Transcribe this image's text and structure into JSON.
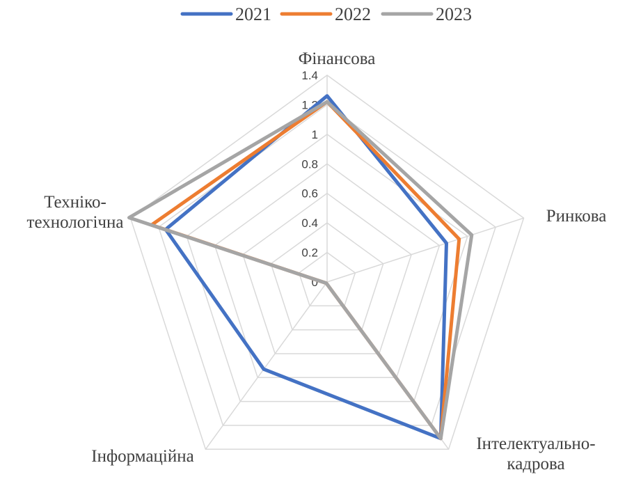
{
  "chart_data": {
    "type": "radar",
    "categories": [
      [
        "Фінансова"
      ],
      [
        "Ринкова"
      ],
      [
        "Інтелектуально-",
        "кадрова"
      ],
      [
        "Інформаційна"
      ],
      [
        "Техніко-",
        "технологічна"
      ]
    ],
    "series": [
      {
        "name": "2021",
        "color": "#4472c4",
        "values": [
          1.26,
          0.85,
          1.31,
          0.73,
          1.15
        ]
      },
      {
        "name": "2022",
        "color": "#ed7d31",
        "values": [
          1.22,
          0.94,
          1.31,
          0.01,
          1.25
        ]
      },
      {
        "name": "2023",
        "color": "#a5a5a5",
        "values": [
          1.22,
          1.03,
          1.31,
          0.01,
          1.41
        ]
      }
    ],
    "rlim": [
      0,
      1.4
    ],
    "ticks": [
      "0",
      "0.2",
      "0.4",
      "0.6",
      "0.8",
      "1",
      "1.2",
      "1.4"
    ],
    "legend_position": "top",
    "grid": true
  }
}
